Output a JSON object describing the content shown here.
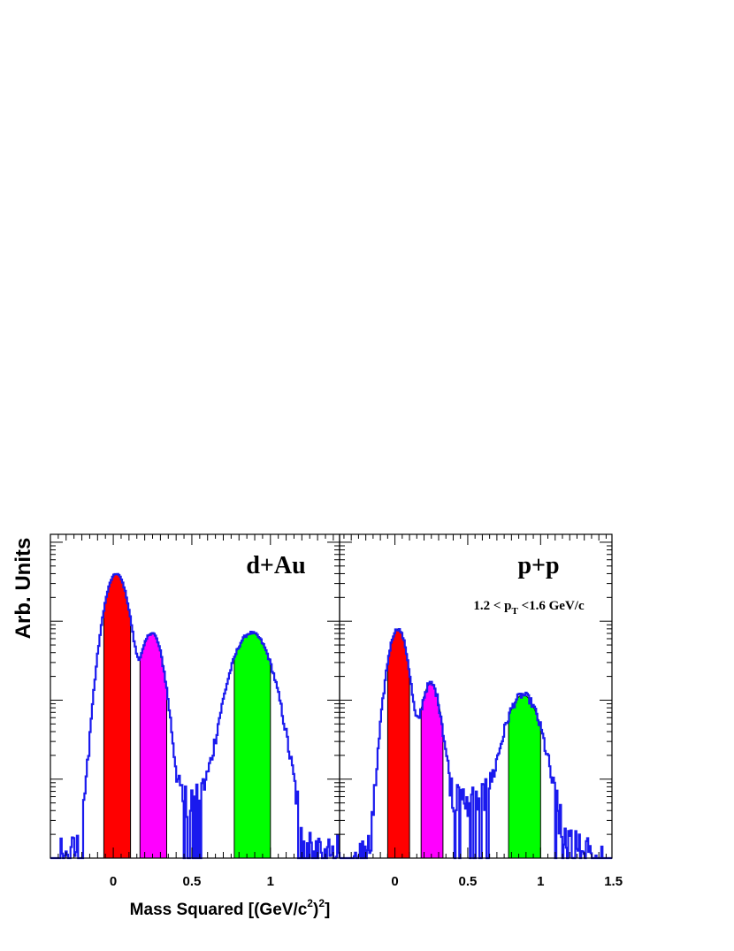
{
  "chart_data": {
    "type": "area",
    "ylabel": "Arb. Units",
    "xlabel": "Mass Squared [(GeV/c",
    "xlabel_sup1": "2",
    "xlabel_mid": ")",
    "xlabel_sup2": "2",
    "xlabel_end": "]",
    "yscale": "log",
    "colors": {
      "histogram": "#1a1aee",
      "pion": "#ff0000",
      "kaon": "#ff00ff",
      "proton": "#00ff00",
      "frame": "#000000"
    },
    "panels": [
      {
        "label": "d+Au",
        "xlim": [
          -0.4,
          1.44
        ],
        "ylim": [
          0,
          4.1
        ],
        "xticks": [
          {
            "value": 0,
            "label": "0"
          },
          {
            "value": 0.5,
            "label": "0.5"
          },
          {
            "value": 1,
            "label": "1"
          }
        ],
        "peaks": [
          {
            "mu": 0.02,
            "sigma": 0.055,
            "amp": 3.6
          },
          {
            "mu": 0.245,
            "sigma": 0.052,
            "amp": 2.85
          },
          {
            "mu": 0.88,
            "sigma": 0.09,
            "amp": 2.85
          }
        ],
        "regions": [
          {
            "species": "pion",
            "color": "#ff0000",
            "range": [
              -0.06,
              0.11
            ]
          },
          {
            "species": "kaon",
            "color": "#ff00ff",
            "range": [
              0.17,
              0.34
            ]
          },
          {
            "species": "proton",
            "color": "#00ff00",
            "range": [
              0.77,
              1.0
            ]
          }
        ]
      },
      {
        "label": "p+p",
        "annotation": "1.2 < p",
        "annotation_sub": "T",
        "annotation_end": " <1.6 GeV/c",
        "xlim": [
          -0.38,
          1.49
        ],
        "ylim": [
          0,
          4.1
        ],
        "xticks": [
          {
            "value": 0,
            "label": "0"
          },
          {
            "value": 0.5,
            "label": "0.5"
          },
          {
            "value": 1,
            "label": "1"
          },
          {
            "value": 1.5,
            "label": "1.5"
          }
        ],
        "peaks": [
          {
            "mu": 0.02,
            "sigma": 0.05,
            "amp": 2.9
          },
          {
            "mu": 0.245,
            "sigma": 0.05,
            "amp": 2.2
          },
          {
            "mu": 0.88,
            "sigma": 0.085,
            "amp": 2.05
          }
        ],
        "regions": [
          {
            "species": "pion",
            "color": "#ff0000",
            "range": [
              -0.05,
              0.1
            ]
          },
          {
            "species": "kaon",
            "color": "#ff00ff",
            "range": [
              0.18,
              0.33
            ]
          },
          {
            "species": "proton",
            "color": "#00ff00",
            "range": [
              0.78,
              1.0
            ]
          }
        ]
      }
    ]
  }
}
